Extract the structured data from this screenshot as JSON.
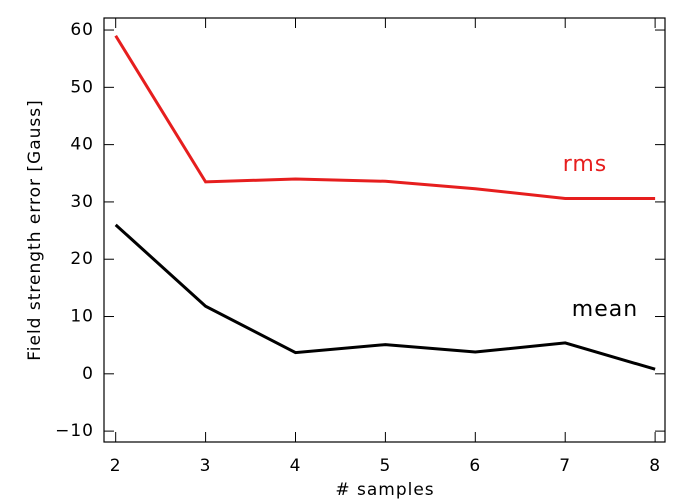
{
  "chart_data": {
    "type": "line",
    "xlabel": "# samples",
    "ylabel": "Field strength error [Gauss]",
    "x": [
      2,
      3,
      4,
      5,
      6,
      7,
      8
    ],
    "series": [
      {
        "name": "rms",
        "color": "#e61e1e",
        "values": [
          59,
          33.5,
          34,
          33.6,
          32.3,
          30.6,
          30.6
        ]
      },
      {
        "name": "mean",
        "color": "#000000",
        "values": [
          26,
          11.8,
          3.7,
          5.1,
          3.8,
          5.4,
          0.8
        ]
      }
    ],
    "xlim": [
      1.87,
      8.11
    ],
    "xticks": [
      2,
      3,
      4,
      5,
      6,
      7,
      8
    ],
    "ylim": [
      -11.9,
      62.1
    ],
    "yticks": [
      {
        "value": -10,
        "label": "−10"
      },
      0,
      10,
      20,
      30,
      40,
      50,
      60
    ]
  }
}
